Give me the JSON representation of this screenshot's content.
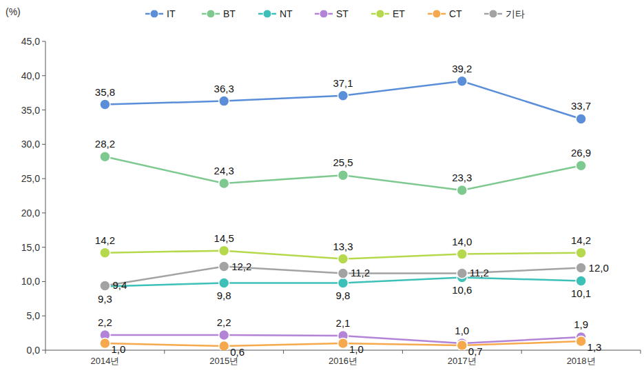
{
  "chart_data": {
    "type": "line",
    "y_label": "(%)",
    "categories": [
      "2014년",
      "2015년",
      "2016년",
      "2017년",
      "2018년"
    ],
    "ylim": [
      0,
      45
    ],
    "yticks": [
      {
        "value": 0,
        "label": "0,0"
      },
      {
        "value": 5,
        "label": "5,0"
      },
      {
        "value": 10,
        "label": "10,0"
      },
      {
        "value": 15,
        "label": "15,0"
      },
      {
        "value": 20,
        "label": "20,0"
      },
      {
        "value": 25,
        "label": "25,0"
      },
      {
        "value": 30,
        "label": "30,0"
      },
      {
        "value": 35,
        "label": "35,0"
      },
      {
        "value": 40,
        "label": "40,0"
      },
      {
        "value": 45,
        "label": "45,0"
      }
    ],
    "grid": false,
    "legend": "top",
    "data_labels": true,
    "marker": "circle",
    "series": [
      {
        "name": "IT",
        "color": "#5b8ed8",
        "values": [
          35.8,
          36.3,
          37.1,
          39.2,
          33.7
        ],
        "value_labels": [
          "35,8",
          "36,3",
          "37,1",
          "39,2",
          "33,7"
        ]
      },
      {
        "name": "BT",
        "color": "#7dc990",
        "values": [
          28.2,
          24.3,
          25.5,
          23.3,
          26.9
        ],
        "value_labels": [
          "28,2",
          "24,3",
          "25,5",
          "23,3",
          "26,9"
        ]
      },
      {
        "name": "NT",
        "color": "#3cc0b8",
        "values": [
          9.3,
          9.8,
          9.8,
          10.6,
          10.1
        ],
        "value_labels": [
          "9,3",
          "9,8",
          "9,8",
          "10,6",
          "10,1"
        ]
      },
      {
        "name": "ST",
        "color": "#b283d6",
        "values": [
          2.2,
          2.2,
          2.1,
          1.0,
          1.9
        ],
        "value_labels": [
          "2,2",
          "2,2",
          "2,1",
          "1,0",
          "1,9"
        ]
      },
      {
        "name": "ET",
        "color": "#b6d84c",
        "values": [
          14.2,
          14.5,
          13.3,
          14.0,
          14.2
        ],
        "value_labels": [
          "14,2",
          "14,5",
          "13,3",
          "14,0",
          "14,2"
        ]
      },
      {
        "name": "CT",
        "color": "#f6a94c",
        "values": [
          1.0,
          0.6,
          1.0,
          0.7,
          1.3
        ],
        "value_labels": [
          "1,0",
          "0,6",
          "1,0",
          "0,7",
          "1,3"
        ]
      },
      {
        "name": "기타",
        "color": "#a3a3a3",
        "values": [
          9.4,
          12.2,
          11.2,
          11.2,
          12.0
        ],
        "value_labels": [
          "9,4",
          "12,2",
          "11,2",
          "11,2",
          "12,0"
        ]
      }
    ]
  }
}
